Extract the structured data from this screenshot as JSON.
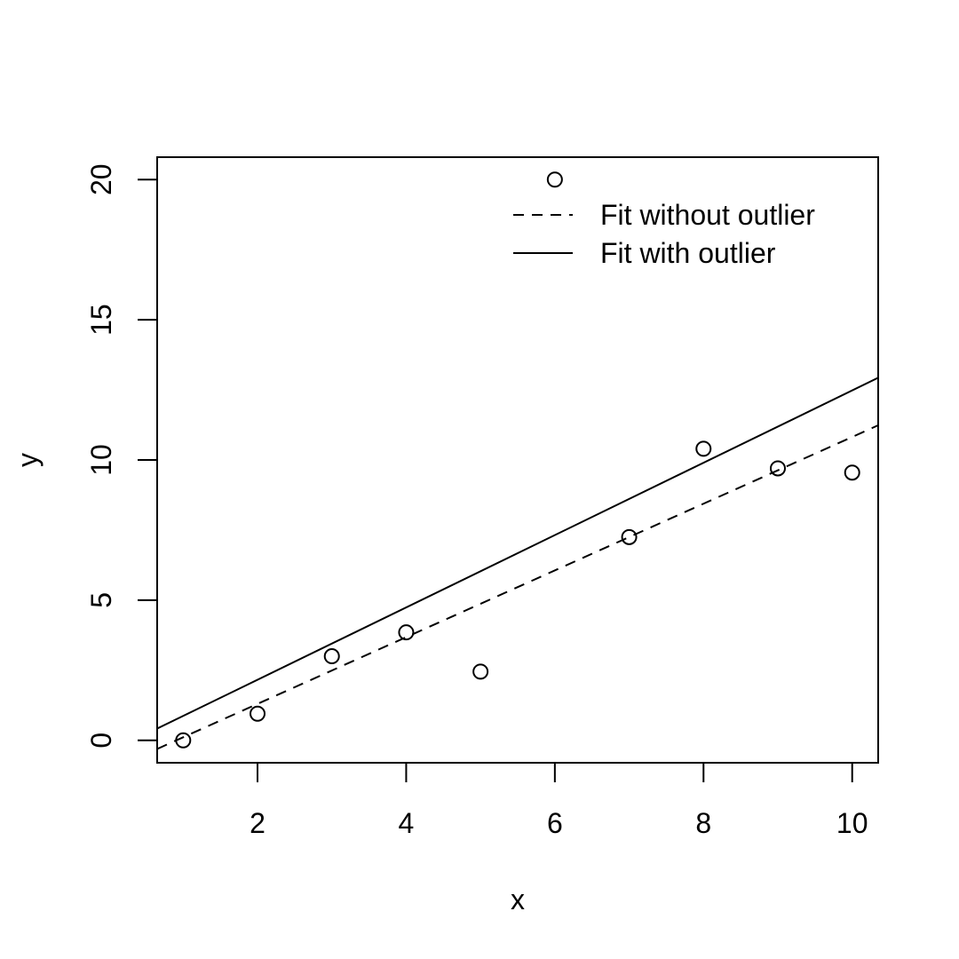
{
  "chart_data": {
    "type": "scatter",
    "title": "",
    "xlabel": "x",
    "ylabel": "y",
    "xlim": [
      0.65,
      10.35
    ],
    "ylim": [
      -0.8,
      20.8
    ],
    "xticks": [
      2,
      4,
      6,
      8,
      10
    ],
    "xtick_labels": [
      "2",
      "4",
      "6",
      "8",
      "10"
    ],
    "yticks": [
      0,
      5,
      10,
      15,
      20
    ],
    "ytick_labels": [
      "0",
      "5",
      "10",
      "15",
      "20"
    ],
    "grid": false,
    "legend_position": "top-right",
    "points": {
      "x": [
        1,
        2,
        3,
        4,
        5,
        6,
        7,
        8,
        9,
        10
      ],
      "y": [
        0.0,
        0.95,
        3.0,
        3.85,
        2.45,
        20.0,
        7.25,
        10.4,
        9.7,
        9.55
      ]
    },
    "lines": [
      {
        "name": "Fit without outlier",
        "style": "dashed",
        "intercept": -1.08,
        "slope": 1.19
      },
      {
        "name": "Fit with outlier",
        "style": "solid",
        "intercept": -0.42,
        "slope": 1.29
      }
    ],
    "legend": [
      {
        "label": "Fit without outlier",
        "style": "dashed"
      },
      {
        "label": "Fit with outlier",
        "style": "solid"
      }
    ],
    "colors": {
      "ink": "#000000",
      "background": "#ffffff"
    }
  }
}
